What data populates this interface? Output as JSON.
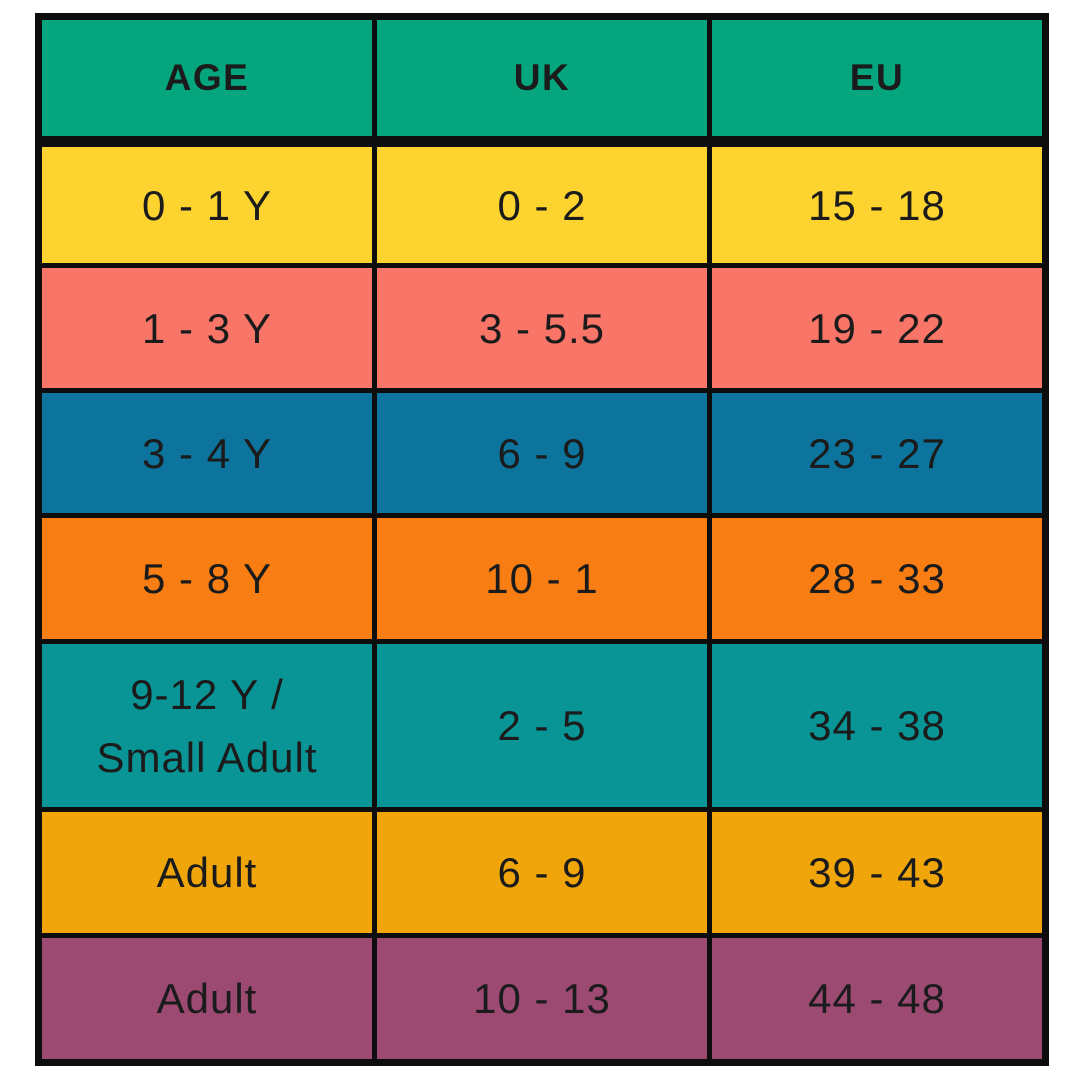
{
  "chart_data": {
    "type": "table",
    "columns": [
      "AGE",
      "UK",
      "EU"
    ],
    "rows": [
      {
        "age": "0 - 1 Y",
        "uk": "0 - 2",
        "eu": "15 - 18"
      },
      {
        "age": "1 - 3 Y",
        "uk": "3 - 5.5",
        "eu": "19 - 22"
      },
      {
        "age": "3 - 4 Y",
        "uk": "6 - 9",
        "eu": "23 - 27"
      },
      {
        "age": "5 - 8 Y",
        "uk": "10 - 1",
        "eu": "28 - 33"
      },
      {
        "age": "9-12 Y /\nSmall Adult",
        "uk": "2 - 5",
        "eu": "34 - 38"
      },
      {
        "age": "Adult",
        "uk": "6 - 9",
        "eu": "39 - 43"
      },
      {
        "age": "Adult",
        "uk": "10 - 13",
        "eu": "44 - 48"
      }
    ]
  },
  "colors": {
    "header_bg": "#05A57E",
    "row_bgs": [
      "#FCD32F",
      "#F97568",
      "#0D749D",
      "#F87D12",
      "#099496",
      "#F0A60B",
      "#9C4A72"
    ],
    "border": "#0d0d0d",
    "text": "#1b1b1b"
  }
}
